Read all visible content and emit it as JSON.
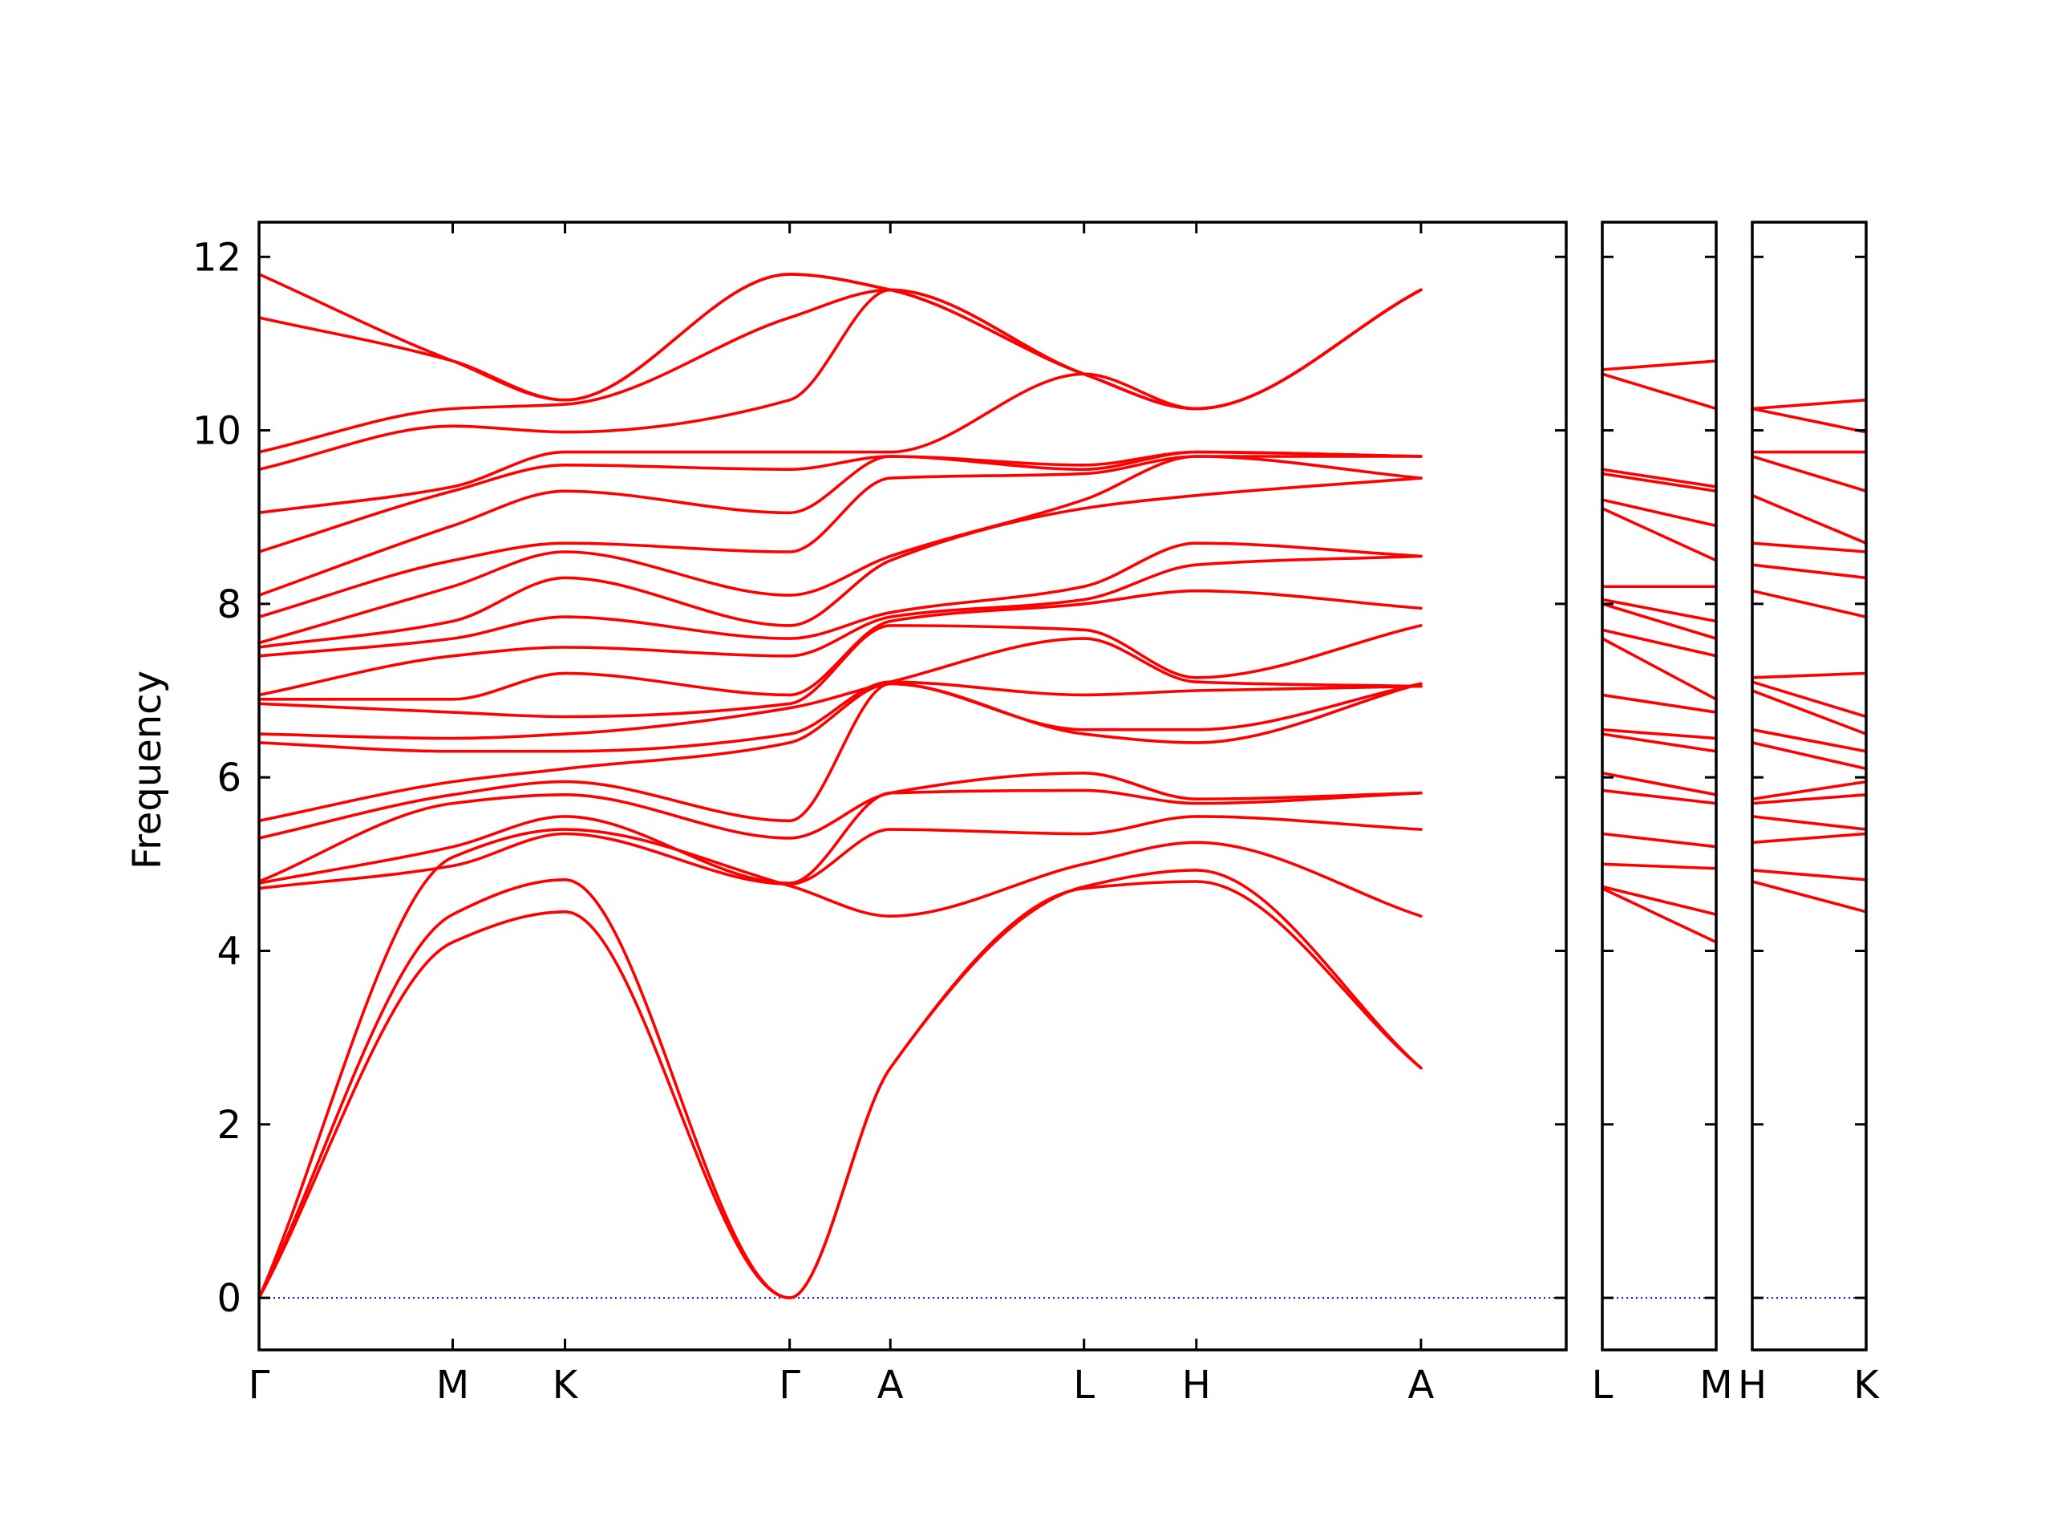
{
  "colors": {
    "band": "#ff0000",
    "zero_line": "#0000ff",
    "axes": "#000000"
  },
  "chart_data": {
    "type": "line",
    "title": "",
    "xlabel": "",
    "ylabel": "Frequency",
    "ylim": [
      -0.6,
      12.4
    ],
    "yticks": [
      0,
      2,
      4,
      6,
      8,
      10,
      12
    ],
    "grid": false,
    "legend": "none",
    "panels": [
      {
        "xlim": [
          0,
          6.75
        ],
        "xticks": [
          {
            "x": 0,
            "label": "Γ"
          },
          {
            "x": 1.0,
            "label": "M"
          },
          {
            "x": 1.58,
            "label": "K"
          },
          {
            "x": 2.74,
            "label": "Γ"
          },
          {
            "x": 3.26,
            "label": "A"
          },
          {
            "x": 4.26,
            "label": "L"
          },
          {
            "x": 4.84,
            "label": "H"
          },
          {
            "x": 6.0,
            "label": "A"
          }
        ],
        "knots": [
          0,
          1.0,
          1.58,
          2.74,
          3.26,
          4.26,
          4.84,
          6.0
        ],
        "bands": [
          [
            0,
            4.1,
            4.45,
            0,
            2.65,
            4.72,
            4.8,
            2.65
          ],
          [
            0,
            4.42,
            4.82,
            0,
            2.65,
            4.74,
            4.93,
            2.65
          ],
          [
            0,
            5.08,
            5.4,
            4.75,
            4.4,
            5.0,
            5.25,
            4.4
          ],
          [
            4.72,
            4.98,
            5.35,
            4.77,
            5.4,
            5.35,
            5.55,
            5.4
          ],
          [
            4.78,
            5.2,
            5.55,
            4.78,
            5.82,
            5.85,
            5.7,
            5.82
          ],
          [
            4.8,
            5.7,
            5.8,
            5.3,
            5.82,
            6.05,
            5.75,
            5.82
          ],
          [
            5.3,
            5.8,
            5.95,
            5.5,
            7.08,
            6.5,
            6.4,
            7.08
          ],
          [
            5.5,
            5.95,
            6.1,
            6.4,
            7.08,
            6.55,
            6.55,
            7.08
          ],
          [
            6.4,
            6.3,
            6.3,
            6.5,
            7.1,
            6.95,
            7.0,
            7.05
          ],
          [
            6.5,
            6.45,
            6.5,
            6.8,
            7.1,
            7.6,
            7.1,
            7.05
          ],
          [
            6.85,
            6.75,
            6.7,
            6.85,
            7.75,
            7.7,
            7.15,
            7.75
          ],
          [
            6.9,
            6.9,
            7.2,
            6.95,
            7.8,
            8.0,
            8.15,
            7.95
          ],
          [
            6.95,
            7.4,
            7.5,
            7.4,
            7.85,
            8.05,
            8.45,
            8.55
          ],
          [
            7.4,
            7.6,
            7.85,
            7.6,
            7.9,
            8.2,
            8.7,
            8.55
          ],
          [
            7.5,
            7.8,
            8.3,
            7.75,
            8.5,
            9.1,
            9.25,
            9.45
          ],
          [
            7.55,
            8.2,
            8.6,
            8.1,
            8.55,
            9.2,
            9.7,
            9.7
          ],
          [
            7.85,
            8.5,
            8.7,
            8.6,
            9.45,
            9.5,
            9.7,
            9.45
          ],
          [
            8.1,
            8.9,
            9.3,
            9.05,
            9.7,
            9.55,
            9.75,
            9.7
          ],
          [
            8.6,
            9.3,
            9.6,
            9.55,
            9.7,
            9.6,
            9.75,
            9.7
          ],
          [
            9.05,
            9.35,
            9.75,
            9.75,
            9.75,
            10.65,
            10.25,
            11.62
          ],
          [
            9.55,
            10.05,
            9.98,
            10.35,
            11.62,
            10.65,
            10.25,
            11.62
          ],
          [
            9.75,
            10.25,
            10.3,
            11.3,
            11.62,
            10.65,
            10.25,
            11.62
          ],
          [
            11.3,
            10.8,
            10.35,
            11.8,
            11.62,
            10.65,
            10.25,
            11.62
          ],
          [
            11.8,
            10.8,
            10.35,
            11.8,
            11.62,
            10.65,
            10.25,
            11.62
          ]
        ]
      },
      {
        "xlim": [
          0,
          1
        ],
        "xticks": [
          {
            "x": 0,
            "label": "L"
          },
          {
            "x": 1,
            "label": "M"
          }
        ],
        "knots": [
          0,
          1
        ],
        "bands": [
          [
            4.72,
            4.1
          ],
          [
            4.74,
            4.42
          ],
          [
            5.0,
            4.95
          ],
          [
            5.35,
            5.2
          ],
          [
            5.85,
            5.7
          ],
          [
            6.05,
            5.8
          ],
          [
            6.5,
            6.3
          ],
          [
            6.55,
            6.45
          ],
          [
            6.95,
            6.75
          ],
          [
            7.6,
            6.9
          ],
          [
            7.7,
            7.4
          ],
          [
            8.0,
            7.6
          ],
          [
            8.05,
            7.8
          ],
          [
            8.2,
            8.2
          ],
          [
            9.1,
            8.5
          ],
          [
            9.2,
            8.9
          ],
          [
            9.5,
            9.3
          ],
          [
            9.55,
            9.35
          ],
          [
            10.65,
            10.25
          ],
          [
            10.7,
            10.8
          ]
        ]
      },
      {
        "xlim": [
          0,
          1
        ],
        "xticks": [
          {
            "x": 0,
            "label": "H"
          },
          {
            "x": 1,
            "label": "K"
          }
        ],
        "knots": [
          0,
          1
        ],
        "bands": [
          [
            4.8,
            4.45
          ],
          [
            4.93,
            4.82
          ],
          [
            5.25,
            5.35
          ],
          [
            5.55,
            5.4
          ],
          [
            5.7,
            5.8
          ],
          [
            5.75,
            5.95
          ],
          [
            6.4,
            6.1
          ],
          [
            6.55,
            6.3
          ],
          [
            7.0,
            6.5
          ],
          [
            7.1,
            6.7
          ],
          [
            7.15,
            7.2
          ],
          [
            8.15,
            7.85
          ],
          [
            8.45,
            8.3
          ],
          [
            8.7,
            8.6
          ],
          [
            9.25,
            8.7
          ],
          [
            9.7,
            9.3
          ],
          [
            9.75,
            9.75
          ],
          [
            10.25,
            9.98
          ],
          [
            10.25,
            10.35
          ]
        ]
      }
    ]
  }
}
